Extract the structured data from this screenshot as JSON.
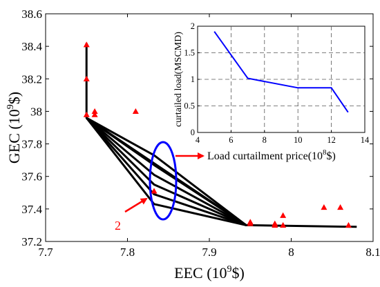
{
  "chart_data": [
    {
      "type": "line",
      "xlabel_base": "EEC (10",
      "xlabel_exp": "9",
      "xlabel_tail": "$)",
      "ylabel_base": "GEC (10",
      "ylabel_exp": "9",
      "ylabel_tail": "$)",
      "xlim": [
        7.7,
        8.1
      ],
      "ylim": [
        37.2,
        38.6
      ],
      "xticks": [
        7.7,
        7.8,
        7.9,
        8.0,
        8.1
      ],
      "xtick_labels": [
        "7.7",
        "7.8",
        "7.9",
        "8",
        "8.1"
      ],
      "yticks": [
        37.2,
        37.4,
        37.6,
        37.8,
        38.0,
        38.2,
        38.4,
        38.6
      ],
      "ytick_labels": [
        "37.2",
        "37.4",
        "37.6",
        "37.8",
        "38",
        "38.2",
        "38.4",
        "38.6"
      ],
      "grid": false,
      "series": [
        {
          "x": [
            7.75,
            7.75,
            7.945,
            8.08
          ],
          "y": [
            38.42,
            37.96,
            37.3,
            37.29
          ]
        },
        {
          "x": [
            7.75,
            7.8325,
            7.945
          ],
          "y": [
            37.96,
            37.73,
            37.3
          ]
        },
        {
          "x": [
            7.75,
            7.8325,
            7.945
          ],
          "y": [
            37.96,
            37.67,
            37.3
          ]
        },
        {
          "x": [
            7.75,
            7.8325,
            7.945
          ],
          "y": [
            37.96,
            37.61,
            37.3
          ]
        },
        {
          "x": [
            7.75,
            7.8325,
            7.945
          ],
          "y": [
            37.96,
            37.55,
            37.3
          ]
        },
        {
          "x": [
            7.75,
            7.8325,
            7.945
          ],
          "y": [
            37.96,
            37.49,
            37.3
          ]
        },
        {
          "x": [
            7.75,
            7.8325,
            7.945
          ],
          "y": [
            37.96,
            37.43,
            37.3
          ]
        }
      ],
      "scatter": {
        "marker": "triangle",
        "color": "#ff0000",
        "points": [
          [
            7.75,
            38.41
          ],
          [
            7.75,
            38.2
          ],
          [
            7.75,
            37.98
          ],
          [
            7.76,
            38.0
          ],
          [
            7.76,
            37.98
          ],
          [
            7.81,
            38.0
          ],
          [
            7.8325,
            37.51
          ],
          [
            7.95,
            37.32
          ],
          [
            7.95,
            37.31
          ],
          [
            7.98,
            37.31
          ],
          [
            7.98,
            37.3
          ],
          [
            7.99,
            37.36
          ],
          [
            7.99,
            37.3
          ],
          [
            8.04,
            37.41
          ],
          [
            8.06,
            37.41
          ],
          [
            8.07,
            37.3
          ]
        ]
      },
      "line_color": "#000000",
      "annotations": {
        "arrow_label": "Load curtailment price(10",
        "arrow_label_exp": "8",
        "arrow_label_tail": "$)",
        "number_label": "2",
        "ellipse_color": "#0000ff",
        "arrow_color": "#ff0000"
      }
    },
    {
      "type": "line",
      "ylabel": "curtailed load(MSCMD)",
      "xlim": [
        4,
        14
      ],
      "ylim": [
        0,
        2
      ],
      "xticks": [
        4,
        6,
        8,
        10,
        12,
        14
      ],
      "xtick_labels": [
        "4",
        "6",
        "8",
        "10",
        "12",
        "14"
      ],
      "yticks": [
        0,
        0.5,
        1,
        1.5,
        2
      ],
      "ytick_labels": [
        "0",
        "0.5",
        "1",
        "1.5",
        "2"
      ],
      "grid": true,
      "series": [
        {
          "x": [
            5,
            7,
            10,
            12,
            13
          ],
          "y": [
            1.9,
            1.02,
            0.84,
            0.84,
            0.38
          ],
          "color": "#0000ff"
        }
      ]
    }
  ]
}
